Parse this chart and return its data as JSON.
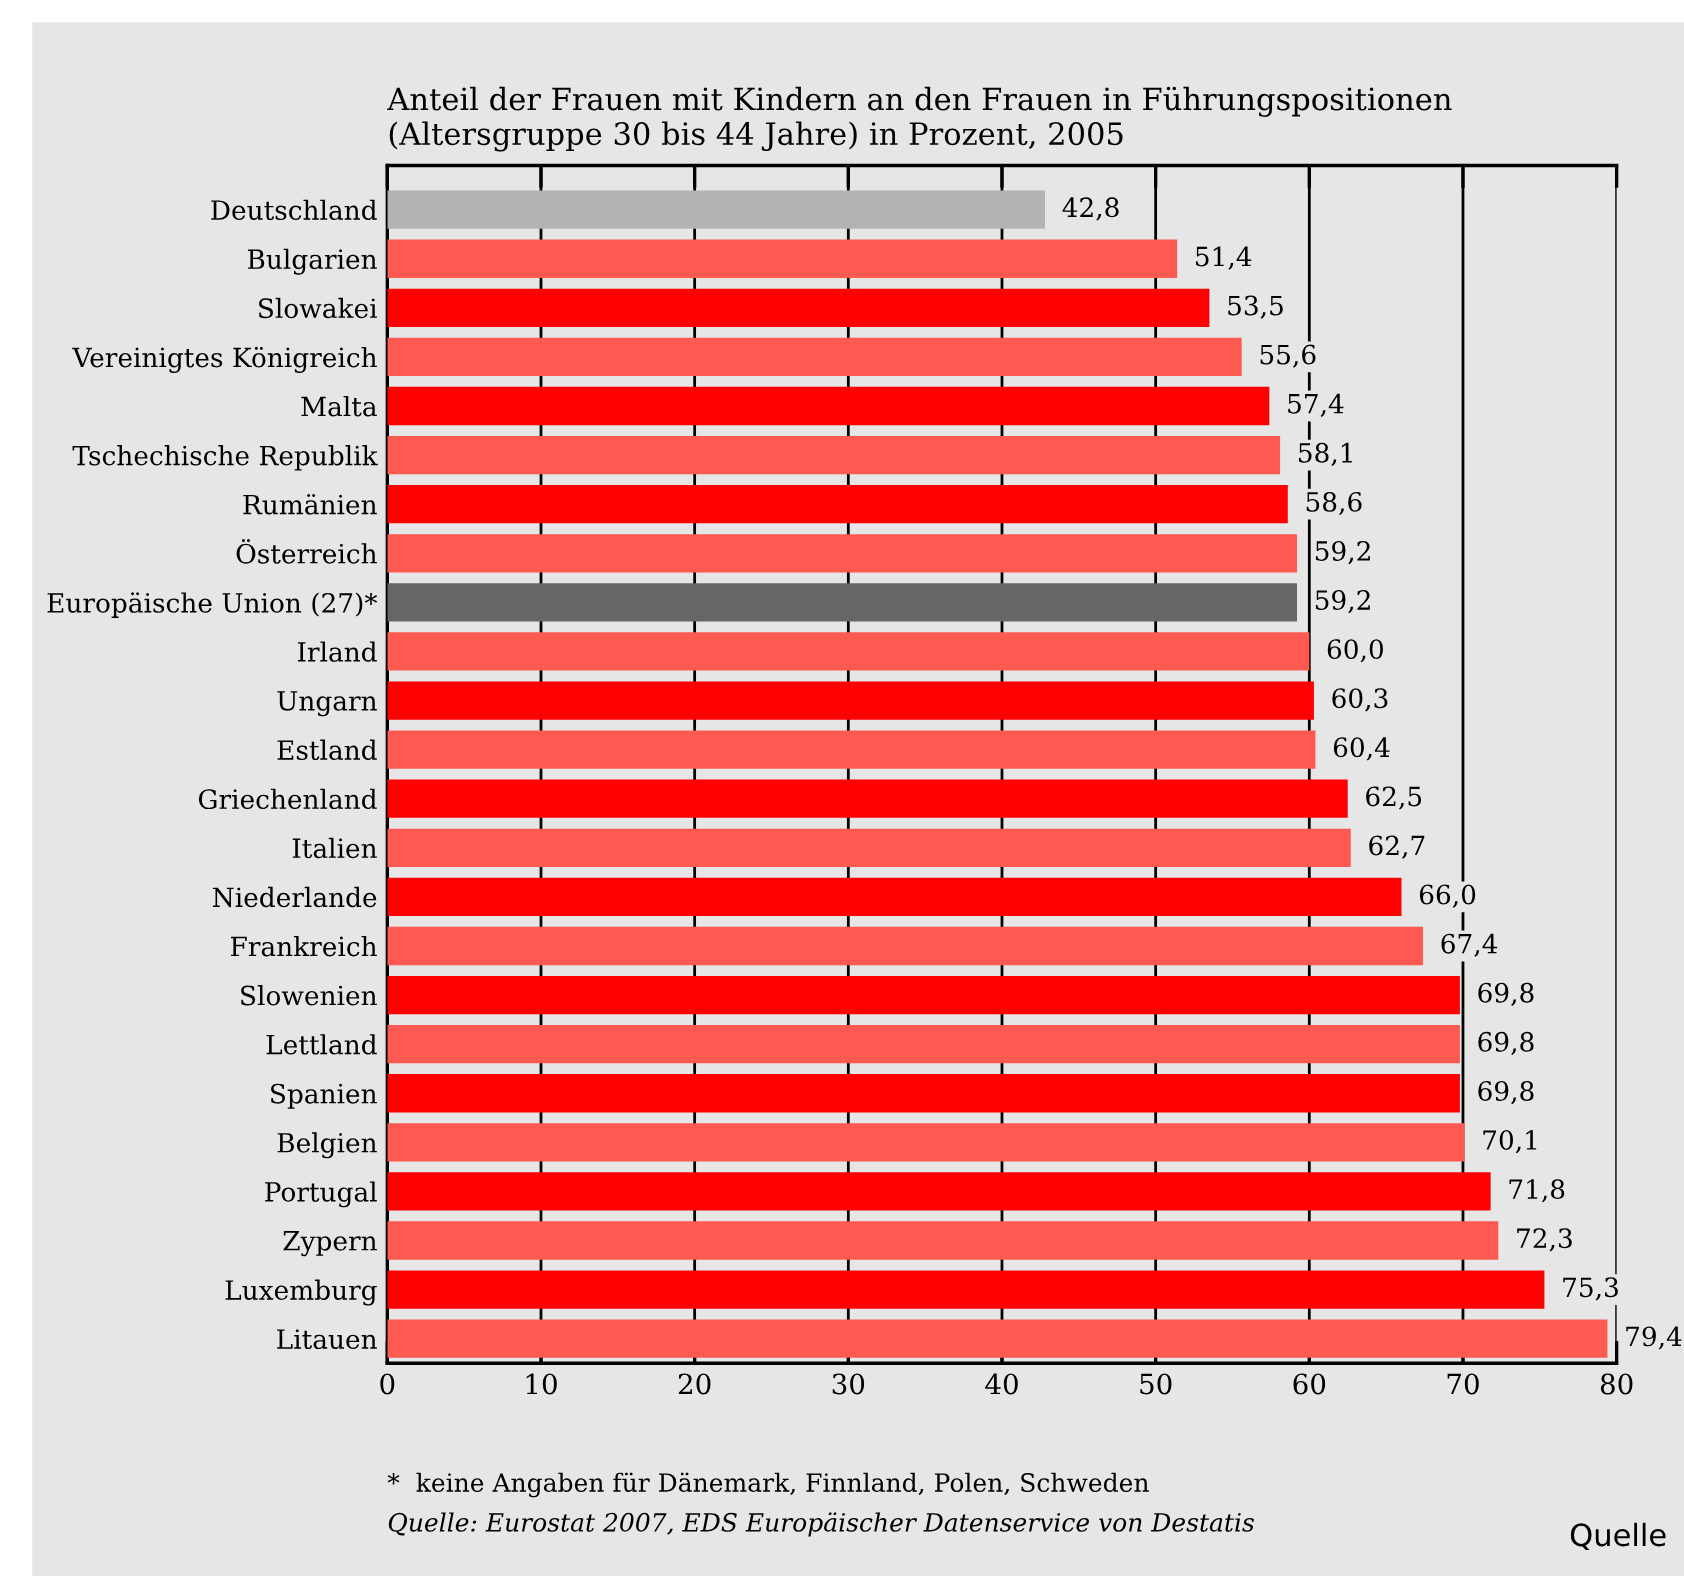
{
  "chart_data": {
    "type": "bar",
    "orientation": "horizontal",
    "title": "Anteil der Frauen mit Kindern an den Frauen in Führungspositionen\n(Altersgruppe 30 bis 44 Jahre) in Prozent, 2005",
    "categories": [
      "Deutschland",
      "Bulgarien",
      "Slowakei",
      "Vereinigtes Königreich",
      "Malta",
      "Tschechische Republik",
      "Rumänien",
      "Österreich",
      "Europäische Union (27)*",
      "Irland",
      "Ungarn",
      "Estland",
      "Griechenland",
      "Italien",
      "Niederlande",
      "Frankreich",
      "Slowenien",
      "Lettland",
      "Spanien",
      "Belgien",
      "Portugal",
      "Zypern",
      "Luxemburg",
      "Litauen"
    ],
    "values": [
      42.8,
      51.4,
      53.5,
      55.6,
      57.4,
      58.1,
      58.6,
      59.2,
      59.2,
      60.0,
      60.3,
      60.4,
      62.5,
      62.7,
      66.0,
      67.4,
      69.8,
      69.8,
      69.8,
      70.1,
      71.8,
      72.3,
      75.3,
      79.4
    ],
    "value_labels": [
      "42,8",
      "51,4",
      "53,5",
      "55,6",
      "57,4",
      "58,1",
      "58,6",
      "59,2",
      "59,2",
      "60,0",
      "60,3",
      "60,4",
      "62,5",
      "62,7",
      "66,0",
      "67,4",
      "69,8",
      "69,8",
      "69,8",
      "70,1",
      "71,8",
      "72,3",
      "75,3",
      "79,4"
    ],
    "colors": [
      "#b3b3b3",
      "#ff5a52",
      "#ff0000",
      "#ff5a52",
      "#ff0000",
      "#ff5a52",
      "#ff0000",
      "#ff5a52",
      "#666666",
      "#ff5a52",
      "#ff0000",
      "#ff5a52",
      "#ff0000",
      "#ff5a52",
      "#ff0000",
      "#ff5a52",
      "#ff0000",
      "#ff5a52",
      "#ff0000",
      "#ff5a52",
      "#ff0000",
      "#ff5a52",
      "#ff0000",
      "#ff5a52"
    ],
    "xlim": [
      0,
      80
    ],
    "xticks": [
      0,
      10,
      20,
      30,
      40,
      50,
      60,
      70,
      80
    ],
    "grid": "x",
    "annotations": [
      "*  keine Angaben für Dänemark, Finnland, Polen, Schweden",
      "Quelle: Eurostat 2007, EDS Europäischer Datenservice von Destatis",
      "Quelle"
    ]
  }
}
